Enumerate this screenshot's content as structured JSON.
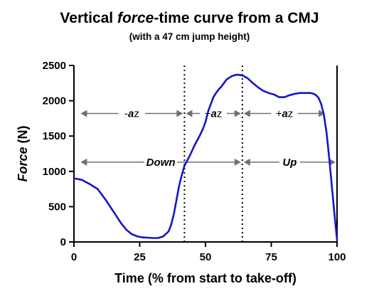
{
  "chart_data": {
    "type": "line",
    "title_parts": [
      "Vertical ",
      "force",
      "-time curve from a CMJ"
    ],
    "subtitle": "(with a 47 cm jump height)",
    "xlabel": "Time (% from start to take-off)",
    "ylabel_parts": [
      "Force",
      " (N)"
    ],
    "xlim": [
      0,
      100
    ],
    "ylim": [
      0,
      2500
    ],
    "xticks": [
      0,
      25,
      50,
      75,
      100
    ],
    "yticks": [
      0,
      500,
      1000,
      1500,
      2000,
      2500
    ],
    "grid": false,
    "series": [
      {
        "color": "#1515c8",
        "x": [
          0,
          3,
          6,
          9,
          12,
          15,
          18,
          20,
          22,
          24,
          26,
          28,
          30,
          32,
          34,
          36,
          37,
          38,
          39,
          40,
          41,
          42,
          43,
          44,
          45,
          46,
          47,
          48,
          49,
          50,
          51,
          52,
          53,
          54,
          55,
          56,
          58,
          60,
          62,
          64,
          66,
          68,
          70,
          72,
          74,
          76,
          78,
          80,
          82,
          84,
          86,
          88,
          90,
          91,
          92,
          93,
          94,
          95,
          96,
          97,
          98,
          99,
          100
        ],
        "y": [
          900,
          880,
          820,
          750,
          600,
          430,
          260,
          170,
          110,
          80,
          65,
          60,
          55,
          55,
          80,
          150,
          250,
          400,
          600,
          800,
          950,
          1080,
          1150,
          1220,
          1300,
          1380,
          1450,
          1520,
          1600,
          1700,
          1850,
          1950,
          2050,
          2110,
          2160,
          2200,
          2300,
          2350,
          2370,
          2360,
          2320,
          2250,
          2190,
          2140,
          2110,
          2090,
          2050,
          2050,
          2080,
          2100,
          2110,
          2110,
          2110,
          2100,
          2080,
          2040,
          1950,
          1800,
          1550,
          1200,
          800,
          400,
          30
        ]
      }
    ],
    "vlines": [
      42,
      64
    ],
    "annotations": [
      {
        "text_parts": [
          "-",
          "a",
          "z"
        ],
        "x_start": 2,
        "x_end": 42,
        "y": 1820
      },
      {
        "text_parts": [
          "+",
          "a",
          "z"
        ],
        "x_start": 42,
        "x_end": 64,
        "y": 1820
      },
      {
        "text_parts": [
          "+",
          "a",
          "z"
        ],
        "x_start": 64,
        "x_end": 96,
        "y": 1820
      },
      {
        "text": "Down",
        "x_start": 2,
        "x_end": 64,
        "y": 1130
      },
      {
        "text": "Up",
        "x_start": 64,
        "x_end": 100,
        "y": 1130
      }
    ]
  }
}
